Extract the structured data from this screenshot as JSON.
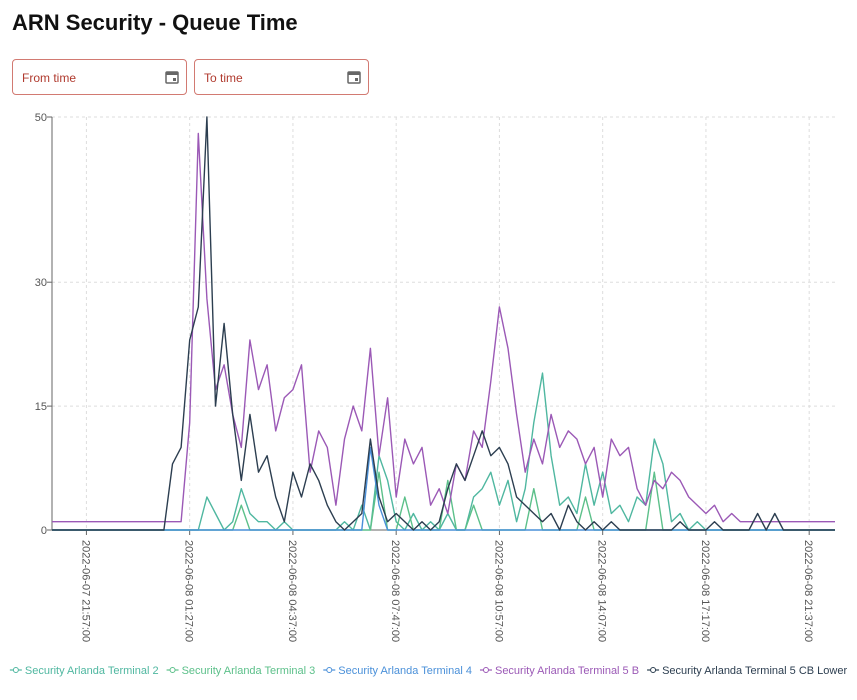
{
  "header": {
    "title": "ARN Security - Queue Time"
  },
  "filters": {
    "from_label": "From time",
    "to_label": "To time"
  },
  "chart_data": {
    "type": "line",
    "categories": [
      null,
      null,
      null,
      null,
      "2022-06-07 21:57:00",
      null,
      null,
      null,
      null,
      null,
      null,
      null,
      null,
      null,
      null,
      null,
      "2022-06-08 01:27:00",
      null,
      null,
      null,
      null,
      null,
      null,
      null,
      null,
      null,
      null,
      null,
      "2022-06-08 04:37:00",
      null,
      null,
      null,
      null,
      null,
      null,
      null,
      null,
      null,
      null,
      null,
      "2022-06-08 07:47:00",
      null,
      null,
      null,
      null,
      null,
      null,
      null,
      null,
      null,
      null,
      null,
      "2022-06-08 10:57:00",
      null,
      null,
      null,
      null,
      null,
      null,
      null,
      null,
      null,
      null,
      null,
      "2022-06-08 14:07:00",
      null,
      null,
      null,
      null,
      null,
      null,
      null,
      null,
      null,
      null,
      null,
      "2022-06-08 17:17:00",
      null,
      null,
      null,
      null,
      null,
      null,
      null,
      null,
      null,
      null,
      null,
      "2022-06-08 21:37:00",
      null,
      null,
      null
    ],
    "series": [
      {
        "name": "Security Arlanda Terminal 2",
        "color": "#4fb7a0",
        "values": [
          0,
          0,
          0,
          0,
          0,
          0,
          0,
          0,
          0,
          0,
          0,
          0,
          0,
          0,
          0,
          0,
          0,
          0,
          4,
          2,
          0,
          1,
          5,
          2,
          1,
          1,
          0,
          1,
          0,
          0,
          0,
          0,
          0,
          0,
          1,
          0,
          3,
          0,
          9,
          6,
          1,
          0,
          2,
          0,
          1,
          0,
          2,
          0,
          0,
          4,
          5,
          7,
          3,
          6,
          1,
          5,
          13,
          19,
          9,
          3,
          4,
          2,
          8,
          3,
          7,
          2,
          3,
          1,
          4,
          3,
          11,
          8,
          1,
          2,
          0,
          1,
          0,
          0,
          0,
          0,
          0,
          0,
          0,
          0,
          0,
          0,
          0,
          0,
          0,
          0,
          0,
          0
        ]
      },
      {
        "name": "Security Arlanda Terminal 3",
        "color": "#5cc08a",
        "values": [
          0,
          0,
          0,
          0,
          0,
          0,
          0,
          0,
          0,
          0,
          0,
          0,
          0,
          0,
          0,
          0,
          0,
          0,
          0,
          0,
          0,
          0,
          3,
          0,
          0,
          0,
          0,
          0,
          0,
          0,
          0,
          0,
          0,
          0,
          0,
          0,
          0,
          0,
          7,
          0,
          0,
          4,
          0,
          0,
          0,
          0,
          6,
          0,
          0,
          3,
          0,
          0,
          0,
          0,
          0,
          0,
          5,
          0,
          0,
          0,
          0,
          0,
          4,
          0,
          0,
          0,
          0,
          0,
          0,
          0,
          7,
          0,
          0,
          0,
          0,
          0,
          0,
          0,
          0,
          0,
          0,
          0,
          0,
          0,
          0,
          0,
          0,
          0,
          0,
          0,
          0,
          0
        ]
      },
      {
        "name": "Security Arlanda Terminal 4",
        "color": "#4a90d9",
        "values": [
          0,
          0,
          0,
          0,
          0,
          0,
          0,
          0,
          0,
          0,
          0,
          0,
          0,
          0,
          0,
          0,
          0,
          0,
          0,
          0,
          0,
          0,
          0,
          0,
          0,
          0,
          0,
          0,
          0,
          0,
          0,
          0,
          0,
          0,
          0,
          0,
          0,
          10,
          3,
          0,
          0,
          0,
          0,
          0,
          0,
          0,
          0,
          0,
          0,
          0,
          0,
          0,
          0,
          0,
          0,
          0,
          0,
          0,
          0,
          0,
          0,
          0,
          0,
          0,
          0,
          0,
          0,
          0,
          0,
          0,
          0,
          0,
          0,
          0,
          0,
          0,
          0,
          0,
          0,
          0,
          0,
          0,
          0,
          0,
          0,
          0,
          0,
          0,
          0,
          0,
          0,
          0
        ]
      },
      {
        "name": "Security Arlanda Terminal 5 B",
        "color": "#9b59b6",
        "values": [
          1,
          1,
          1,
          1,
          1,
          1,
          1,
          1,
          1,
          1,
          1,
          1,
          1,
          1,
          1,
          1,
          13,
          48,
          28,
          17,
          20,
          14,
          10,
          23,
          17,
          20,
          12,
          16,
          17,
          20,
          7,
          12,
          10,
          3,
          11,
          15,
          12,
          22,
          9,
          16,
          4,
          11,
          8,
          10,
          3,
          5,
          2,
          8,
          6,
          12,
          10,
          18,
          27,
          22,
          14,
          7,
          11,
          8,
          14,
          10,
          12,
          11,
          8,
          10,
          4,
          11,
          9,
          10,
          5,
          3,
          6,
          5,
          7,
          6,
          4,
          3,
          2,
          3,
          1,
          2,
          1,
          1,
          1,
          1,
          1,
          1,
          1,
          1,
          1,
          1,
          1,
          1
        ]
      },
      {
        "name": "Security Arlanda Terminal 5 CB Lower",
        "color": "#2c3e50",
        "values": [
          0,
          0,
          0,
          0,
          0,
          0,
          0,
          0,
          0,
          0,
          0,
          0,
          0,
          0,
          8,
          10,
          23,
          27,
          50,
          15,
          25,
          14,
          6,
          14,
          7,
          9,
          4,
          1,
          7,
          4,
          8,
          6,
          3,
          1,
          0,
          1,
          2,
          11,
          4,
          1,
          2,
          1,
          0,
          1,
          0,
          1,
          5,
          8,
          6,
          9,
          12,
          9,
          10,
          8,
          4,
          3,
          2,
          1,
          2,
          0,
          3,
          1,
          0,
          1,
          0,
          1,
          0,
          0,
          0,
          0,
          0,
          0,
          0,
          1,
          0,
          0,
          0,
          1,
          0,
          0,
          0,
          0,
          2,
          0,
          2,
          0,
          0,
          0,
          0,
          0,
          0,
          0
        ]
      }
    ],
    "ylim": [
      0,
      50
    ],
    "yticks": [
      0,
      15,
      30,
      50
    ],
    "grid": true,
    "legend": "bottom"
  }
}
